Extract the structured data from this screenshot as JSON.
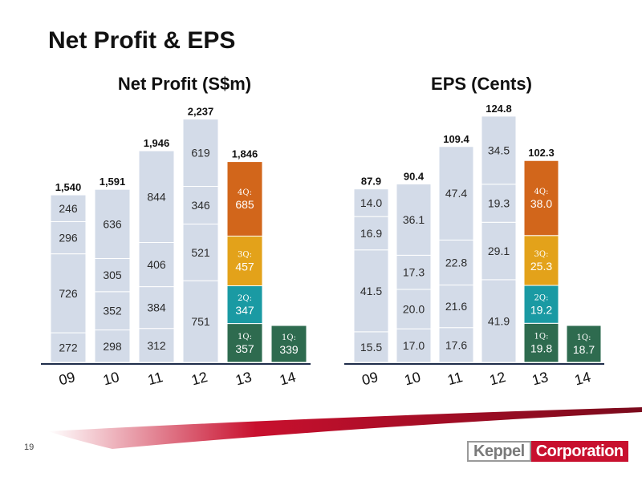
{
  "page": {
    "title": "Net Profit & EPS",
    "page_number": "19"
  },
  "logo": {
    "part1": "Keppel",
    "part2": "Corporation"
  },
  "colors": {
    "light_bar": "#d3dbe8",
    "q1": "#2e6b4f",
    "q2": "#1a9aa3",
    "q3": "#e3a21a",
    "q4": "#d2661b",
    "brand_red": "#c8102e"
  },
  "chart_data": [
    {
      "type": "bar",
      "stacked": true,
      "title": "Net Profit (S$m)",
      "categories": [
        "09",
        "10",
        "11",
        "12",
        "13",
        "14"
      ],
      "totals": [
        "1,540",
        "1,591",
        "1,946",
        "2,237",
        "1,846",
        ""
      ],
      "series": [
        {
          "quarter_label": "1Q:",
          "values": [
            272,
            298,
            312,
            751,
            357,
            339
          ]
        },
        {
          "quarter_label": "2Q:",
          "values": [
            726,
            352,
            384,
            521,
            347,
            null
          ]
        },
        {
          "quarter_label": "3Q:",
          "values": [
            296,
            305,
            406,
            346,
            457,
            null
          ]
        },
        {
          "quarter_label": "4Q:",
          "values": [
            246,
            636,
            844,
            619,
            685,
            null
          ]
        }
      ],
      "segment_text": [
        [
          "272",
          "298",
          "312",
          "751",
          "357",
          "339"
        ],
        [
          "726",
          "352",
          "384",
          "521",
          "347",
          ""
        ],
        [
          "296",
          "305",
          "406",
          "346",
          "457",
          ""
        ],
        [
          "246",
          "636",
          "844",
          "619",
          "685",
          ""
        ]
      ],
      "highlight_from_index": 4,
      "ylim": [
        0,
        2300
      ]
    },
    {
      "type": "bar",
      "stacked": true,
      "title": "EPS (Cents)",
      "categories": [
        "09",
        "10",
        "11",
        "12",
        "13",
        "14"
      ],
      "totals": [
        "87.9",
        "90.4",
        "109.4",
        "124.8",
        "102.3",
        ""
      ],
      "series": [
        {
          "quarter_label": "1Q:",
          "values": [
            15.5,
            17.0,
            17.6,
            41.9,
            19.8,
            18.7
          ]
        },
        {
          "quarter_label": "2Q:",
          "values": [
            41.5,
            20.0,
            21.6,
            29.1,
            19.2,
            null
          ]
        },
        {
          "quarter_label": "3Q:",
          "values": [
            16.9,
            17.3,
            22.8,
            19.3,
            25.3,
            null
          ]
        },
        {
          "quarter_label": "4Q:",
          "values": [
            14.0,
            36.1,
            47.4,
            34.5,
            38.0,
            null
          ]
        }
      ],
      "segment_text": [
        [
          "15.5",
          "17.0",
          "17.6",
          "41.9",
          "19.8",
          "18.7"
        ],
        [
          "41.5",
          "20.0",
          "21.6",
          "29.1",
          "19.2",
          ""
        ],
        [
          "16.9",
          "17.3",
          "22.8",
          "19.3",
          "25.3",
          ""
        ],
        [
          "14.0",
          "36.1",
          "47.4",
          "34.5",
          "38.0",
          ""
        ]
      ],
      "highlight_from_index": 4,
      "ylim": [
        0,
        128
      ]
    }
  ]
}
